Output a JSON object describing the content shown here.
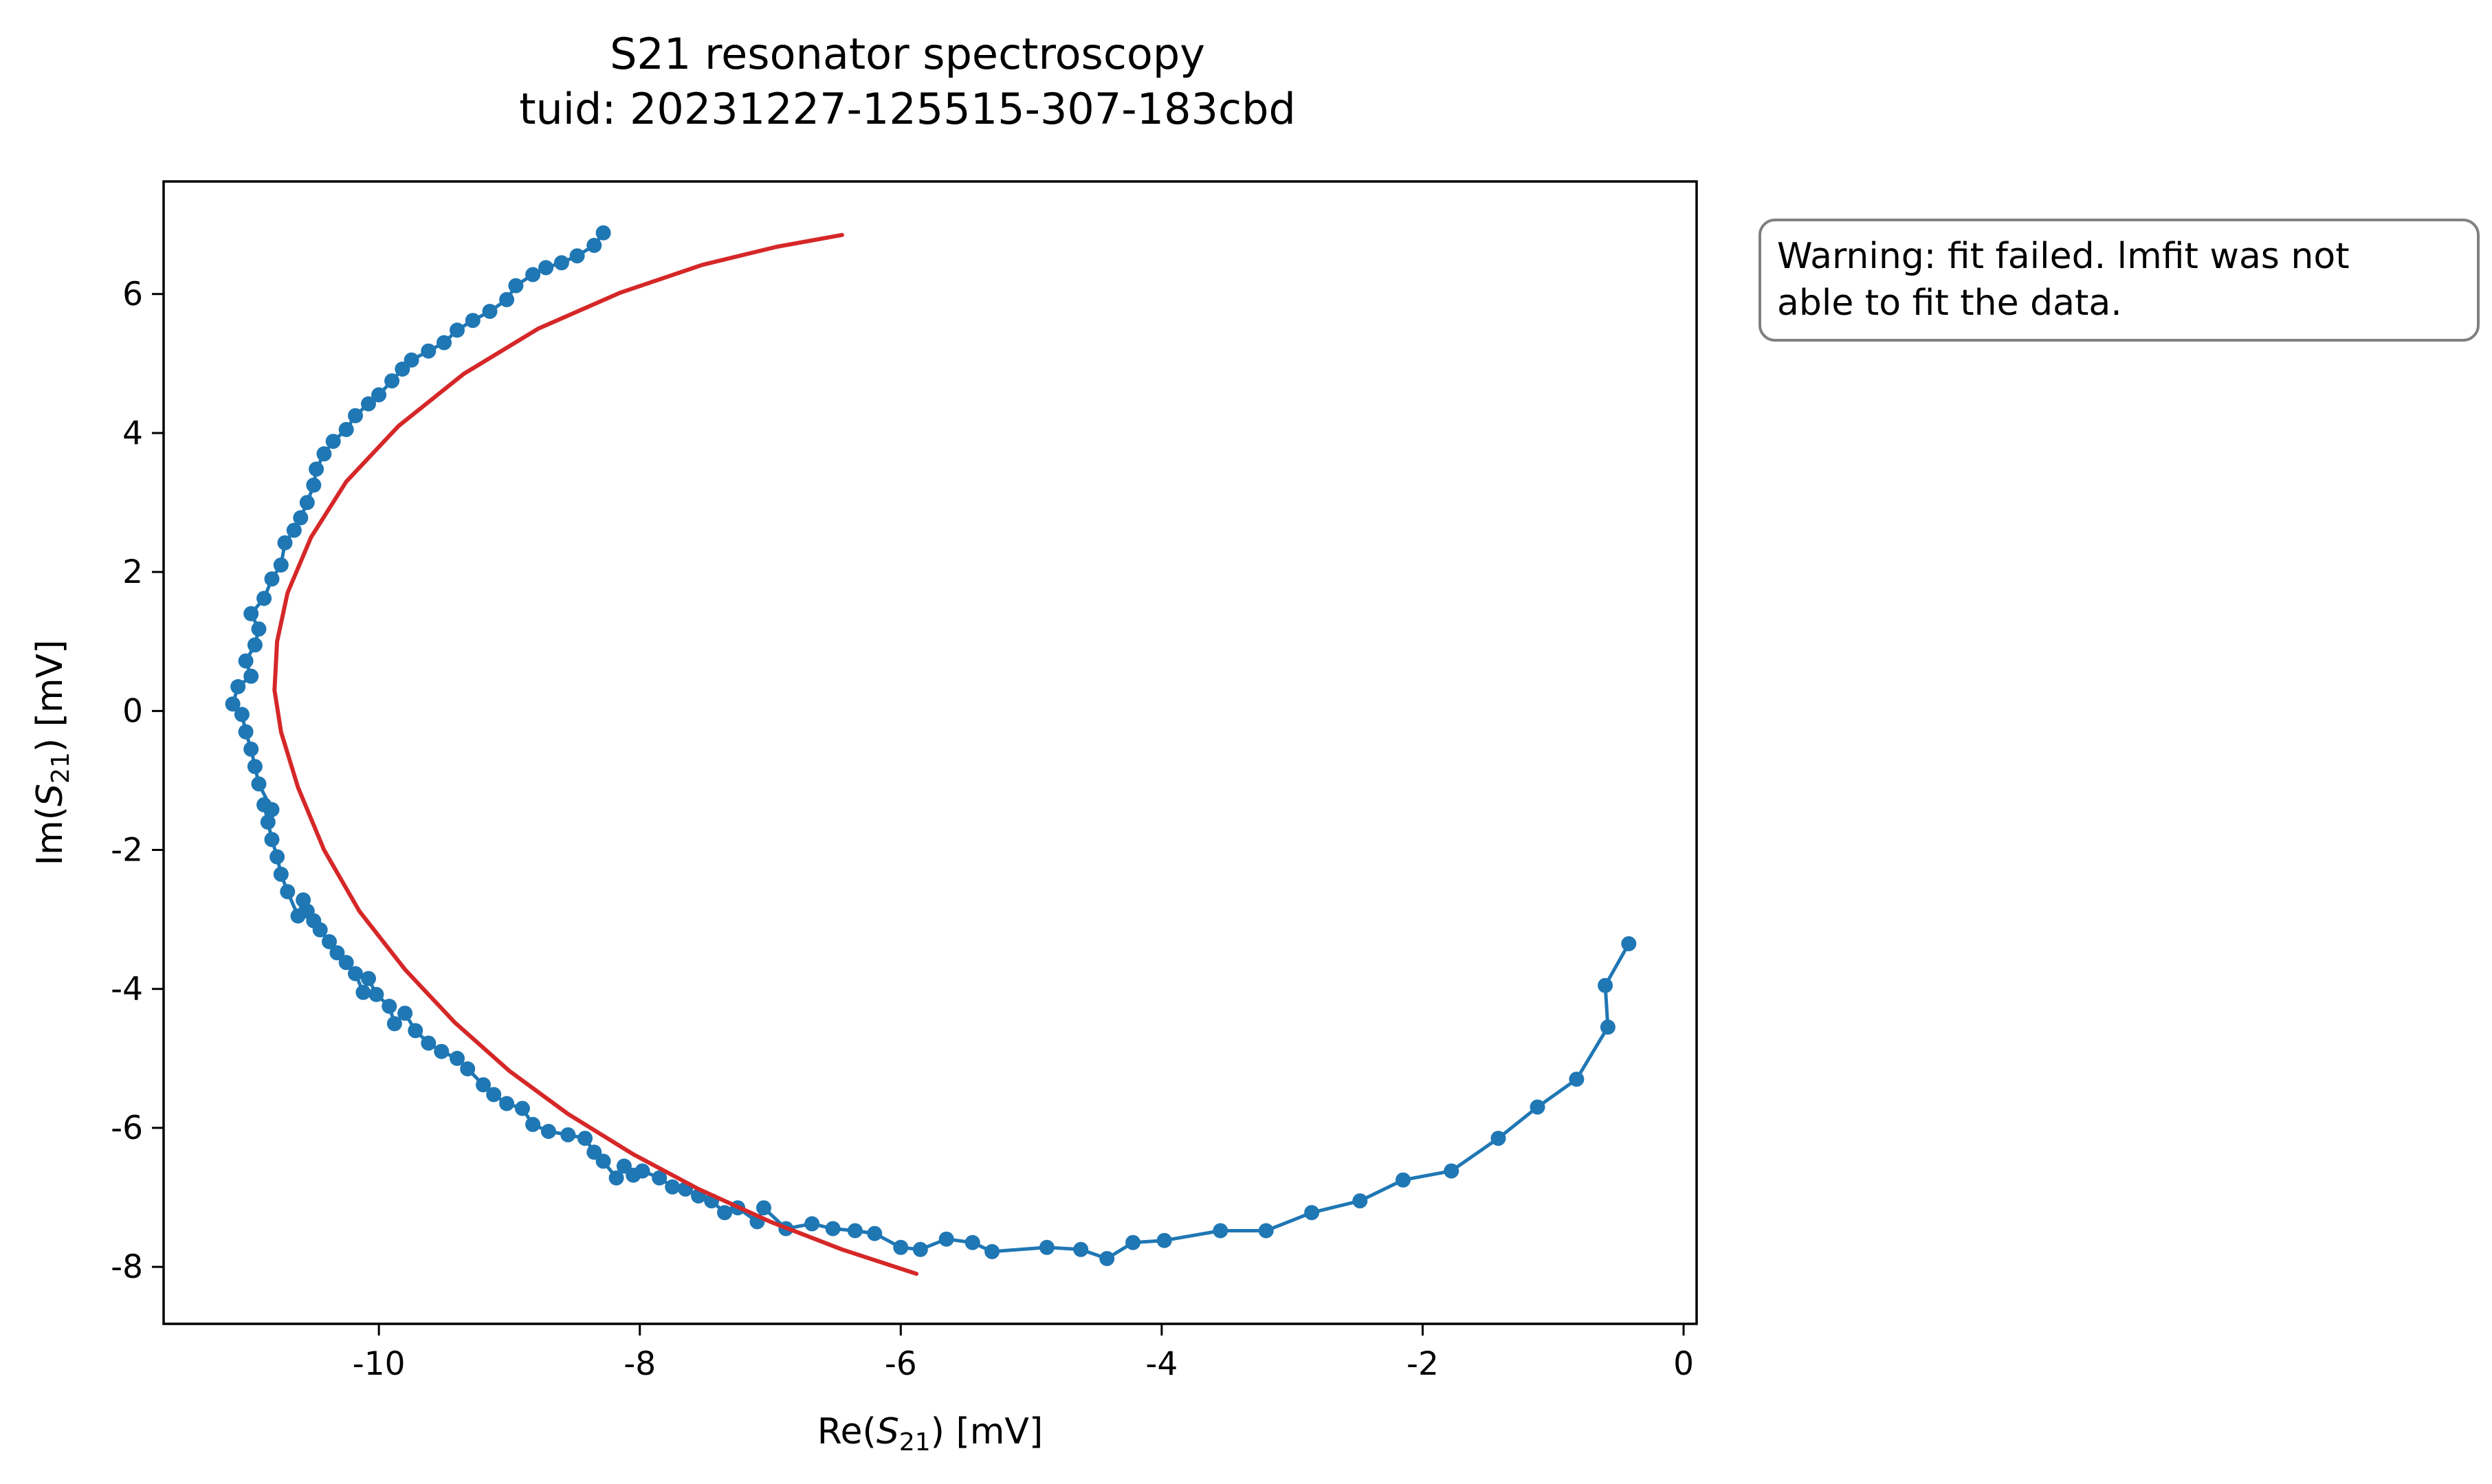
{
  "chart_data": {
    "type": "scatter",
    "title": [
      "S21 resonator spectroscopy",
      "tuid: 20231227-125515-307-183cbd"
    ],
    "xlabel": {
      "prefix": "Re(",
      "symbol": "S",
      "subscript": "21",
      "suffix": ") [mV]"
    },
    "ylabel": {
      "prefix": "Im(",
      "symbol": "S",
      "subscript": "21",
      "suffix": ") [mV]"
    },
    "xlim": [
      -11.65,
      0.1
    ],
    "ylim": [
      -8.82,
      7.62
    ],
    "xticks": [
      {
        "value": -10,
        "label": "-10"
      },
      {
        "value": -8,
        "label": "-8"
      },
      {
        "value": -6,
        "label": "-6"
      },
      {
        "value": -4,
        "label": "-4"
      },
      {
        "value": -2,
        "label": "-2"
      },
      {
        "value": 0,
        "label": "0"
      }
    ],
    "yticks": [
      {
        "value": -8,
        "label": "-8"
      },
      {
        "value": -6,
        "label": "-6"
      },
      {
        "value": -4,
        "label": "-4"
      },
      {
        "value": -2,
        "label": "-2"
      },
      {
        "value": 0,
        "label": "0"
      },
      {
        "value": 2,
        "label": "2"
      },
      {
        "value": 4,
        "label": "4"
      },
      {
        "value": 6,
        "label": "6"
      }
    ],
    "grid": false,
    "series": [
      {
        "kind": "line-with-markers",
        "color": "#1f77b4",
        "points": [
          [
            -0.42,
            -3.35
          ],
          [
            -0.6,
            -3.95
          ],
          [
            -0.58,
            -4.55
          ],
          [
            -0.82,
            -5.3
          ],
          [
            -1.12,
            -5.7
          ],
          [
            -1.42,
            -6.15
          ],
          [
            -1.78,
            -6.62
          ],
          [
            -2.15,
            -6.75
          ],
          [
            -2.48,
            -7.05
          ],
          [
            -2.85,
            -7.22
          ],
          [
            -3.2,
            -7.48
          ],
          [
            -3.55,
            -7.48
          ],
          [
            -3.98,
            -7.62
          ],
          [
            -4.22,
            -7.65
          ],
          [
            -4.42,
            -7.88
          ],
          [
            -4.62,
            -7.75
          ],
          [
            -4.88,
            -7.72
          ],
          [
            -5.3,
            -7.78
          ],
          [
            -5.45,
            -7.65
          ],
          [
            -5.65,
            -7.6
          ],
          [
            -5.85,
            -7.75
          ],
          [
            -6.0,
            -7.72
          ],
          [
            -6.2,
            -7.52
          ],
          [
            -6.35,
            -7.48
          ],
          [
            -6.52,
            -7.45
          ],
          [
            -6.68,
            -7.38
          ],
          [
            -6.88,
            -7.45
          ],
          [
            -7.05,
            -7.15
          ],
          [
            -7.1,
            -7.35
          ],
          [
            -7.25,
            -7.15
          ],
          [
            -7.35,
            -7.22
          ],
          [
            -7.45,
            -7.05
          ],
          [
            -7.55,
            -6.98
          ],
          [
            -7.65,
            -6.88
          ],
          [
            -7.75,
            -6.85
          ],
          [
            -7.85,
            -6.72
          ],
          [
            -7.98,
            -6.62
          ],
          [
            -8.05,
            -6.68
          ],
          [
            -8.12,
            -6.55
          ],
          [
            -8.18,
            -6.72
          ],
          [
            -8.28,
            -6.48
          ],
          [
            -8.35,
            -6.35
          ],
          [
            -8.42,
            -6.15
          ],
          [
            -8.55,
            -6.1
          ],
          [
            -8.7,
            -6.05
          ],
          [
            -8.82,
            -5.95
          ],
          [
            -8.9,
            -5.72
          ],
          [
            -9.02,
            -5.65
          ],
          [
            -9.12,
            -5.52
          ],
          [
            -9.2,
            -5.38
          ],
          [
            -9.32,
            -5.15
          ],
          [
            -9.4,
            -5.0
          ],
          [
            -9.52,
            -4.9
          ],
          [
            -9.62,
            -4.78
          ],
          [
            -9.72,
            -4.6
          ],
          [
            -9.8,
            -4.35
          ],
          [
            -9.88,
            -4.5
          ],
          [
            -9.92,
            -4.25
          ],
          [
            -10.02,
            -4.08
          ],
          [
            -10.08,
            -3.85
          ],
          [
            -10.12,
            -4.05
          ],
          [
            -10.18,
            -3.78
          ],
          [
            -10.25,
            -3.62
          ],
          [
            -10.32,
            -3.48
          ],
          [
            -10.38,
            -3.32
          ],
          [
            -10.45,
            -3.15
          ],
          [
            -10.5,
            -3.02
          ],
          [
            -10.55,
            -2.88
          ],
          [
            -10.58,
            -2.72
          ],
          [
            -10.62,
            -2.95
          ],
          [
            -10.7,
            -2.6
          ],
          [
            -10.75,
            -2.35
          ],
          [
            -10.78,
            -2.1
          ],
          [
            -10.82,
            -1.85
          ],
          [
            -10.85,
            -1.6
          ],
          [
            -10.88,
            -1.35
          ],
          [
            -10.82,
            -1.42
          ],
          [
            -10.92,
            -1.05
          ],
          [
            -10.95,
            -0.8
          ],
          [
            -10.98,
            -0.55
          ],
          [
            -11.02,
            -0.3
          ],
          [
            -11.05,
            -0.05
          ],
          [
            -11.12,
            0.1
          ],
          [
            -11.08,
            0.35
          ],
          [
            -10.98,
            0.5
          ],
          [
            -11.02,
            0.72
          ],
          [
            -10.95,
            0.95
          ],
          [
            -10.92,
            1.18
          ],
          [
            -10.98,
            1.4
          ],
          [
            -10.88,
            1.62
          ],
          [
            -10.82,
            1.9
          ],
          [
            -10.75,
            2.1
          ],
          [
            -10.72,
            2.42
          ],
          [
            -10.65,
            2.6
          ],
          [
            -10.6,
            2.78
          ],
          [
            -10.55,
            3.0
          ],
          [
            -10.5,
            3.25
          ],
          [
            -10.48,
            3.48
          ],
          [
            -10.42,
            3.7
          ],
          [
            -10.35,
            3.88
          ],
          [
            -10.25,
            4.05
          ],
          [
            -10.18,
            4.25
          ],
          [
            -10.08,
            4.42
          ],
          [
            -10.0,
            4.55
          ],
          [
            -9.9,
            4.75
          ],
          [
            -9.82,
            4.92
          ],
          [
            -9.75,
            5.05
          ],
          [
            -9.62,
            5.18
          ],
          [
            -9.5,
            5.3
          ],
          [
            -9.4,
            5.48
          ],
          [
            -9.28,
            5.62
          ],
          [
            -9.15,
            5.75
          ],
          [
            -9.02,
            5.92
          ],
          [
            -8.95,
            6.12
          ],
          [
            -8.82,
            6.28
          ],
          [
            -8.72,
            6.38
          ],
          [
            -8.6,
            6.45
          ],
          [
            -8.48,
            6.55
          ],
          [
            -8.35,
            6.7
          ],
          [
            -8.28,
            6.88
          ]
        ]
      },
      {
        "kind": "fit-line",
        "color": "#d62728",
        "points": [
          [
            -5.88,
            -8.1
          ],
          [
            -6.45,
            -7.75
          ],
          [
            -7.0,
            -7.35
          ],
          [
            -7.55,
            -6.88
          ],
          [
            -8.05,
            -6.38
          ],
          [
            -8.55,
            -5.8
          ],
          [
            -9.0,
            -5.18
          ],
          [
            -9.42,
            -4.48
          ],
          [
            -9.8,
            -3.72
          ],
          [
            -10.15,
            -2.88
          ],
          [
            -10.42,
            -2.0
          ],
          [
            -10.62,
            -1.1
          ],
          [
            -10.75,
            -0.3
          ],
          [
            -10.8,
            0.3
          ],
          [
            -10.78,
            1.0
          ],
          [
            -10.7,
            1.7
          ],
          [
            -10.52,
            2.5
          ],
          [
            -10.25,
            3.3
          ],
          [
            -9.85,
            4.1
          ],
          [
            -9.35,
            4.85
          ],
          [
            -8.78,
            5.5
          ],
          [
            -8.15,
            6.02
          ],
          [
            -7.52,
            6.42
          ],
          [
            -6.95,
            6.68
          ],
          [
            -6.45,
            6.85
          ]
        ]
      }
    ],
    "annotation": [
      "Warning: fit failed. lmfit was not",
      "able to fit the data."
    ]
  }
}
